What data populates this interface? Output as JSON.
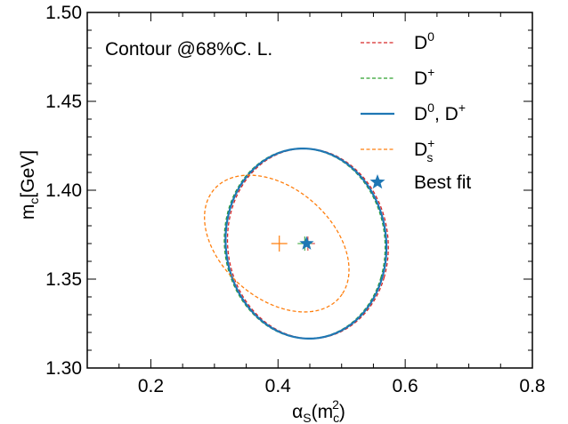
{
  "chart_data": {
    "type": "scatter",
    "title": "",
    "annotation": "Contour @68%C. L.",
    "xlabel": {
      "main": "α",
      "sub1": "S",
      "paren_open": "(m",
      "sub2": "c",
      "sup2": "2",
      "paren_close": ")"
    },
    "ylabel": {
      "main": "m",
      "sub": "c",
      "unit": "[GeV]"
    },
    "xlim": [
      0.1,
      0.8
    ],
    "ylim": [
      1.3,
      1.5
    ],
    "x_ticks": [
      {
        "value": 0.2,
        "label": "0.2"
      },
      {
        "value": 0.4,
        "label": "0.4"
      },
      {
        "value": 0.6,
        "label": "0.6"
      },
      {
        "value": 0.8,
        "label": "0.8"
      }
    ],
    "y_ticks": [
      {
        "value": 1.3,
        "label": "1.30"
      },
      {
        "value": 1.35,
        "label": "1.35"
      },
      {
        "value": 1.4,
        "label": "1.40"
      },
      {
        "value": 1.45,
        "label": "1.45"
      },
      {
        "value": 1.5,
        "label": "1.50"
      }
    ],
    "grid": false,
    "legend_position": "top-right",
    "series": [
      {
        "name": "D0",
        "label_main": "D",
        "label_sup": "0",
        "label_rest": "",
        "label_sub": "",
        "color": "#d62728",
        "style": "dashed",
        "width": 1.3,
        "contour": {
          "cx": 0.447,
          "cy": 1.37,
          "ex": [
            0.12,
            -0.04
          ],
          "ey": [
            -0.054,
            -0.05
          ],
          "tilt": 0.0
        },
        "center": {
          "x": 0.447,
          "y": 1.37
        }
      },
      {
        "name": "D+",
        "label_main": "D",
        "label_sup": "+",
        "label_rest": "",
        "label_sub": "",
        "color": "#2ca02c",
        "style": "dashed",
        "width": 1.3,
        "contour": {
          "cx": 0.442,
          "cy": 1.37,
          "ex": [
            0.12,
            -0.04
          ],
          "ey": [
            -0.054,
            -0.05
          ],
          "tilt": 0.0
        },
        "center": {
          "x": 0.442,
          "y": 1.37
        }
      },
      {
        "name": "D0, D+",
        "label_main": "D",
        "label_sup": "0",
        "label_rest": ", D",
        "label_sup2": "+",
        "label_sub": "",
        "color": "#1f77b4",
        "style": "solid",
        "width": 2.2,
        "contour": {
          "cx": 0.444,
          "cy": 1.37,
          "ex": [
            0.12,
            -0.04
          ],
          "ey": [
            -0.054,
            -0.05
          ],
          "tilt": 0.0
        },
        "center": {
          "x": 0.444,
          "y": 1.37
        }
      },
      {
        "name": "Ds+",
        "label_main": "D",
        "label_sup": "+",
        "label_rest": "",
        "label_sub": "s",
        "color": "#ff7f0e",
        "style": "dashed",
        "width": 1.3,
        "contour": {
          "cx": 0.398,
          "cy": 1.37,
          "ex": [
            0.103,
            -0.048
          ],
          "ey": [
            -0.081,
            -0.026
          ],
          "tilt": 0.0
        },
        "center": {
          "x": 0.402,
          "y": 1.37
        }
      }
    ],
    "best_fit": {
      "name": "Best fit",
      "x": 0.445,
      "y": 1.37,
      "color": "#1f77b4",
      "marker": "star"
    }
  }
}
